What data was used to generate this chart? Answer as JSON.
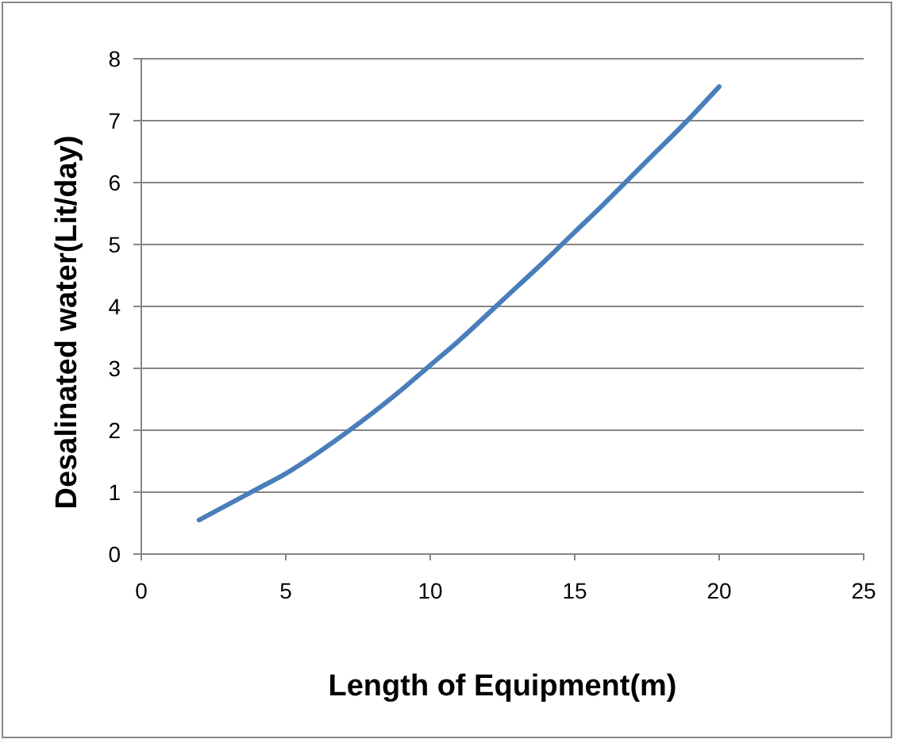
{
  "chart_data": {
    "type": "line",
    "xlabel": "Length of Equipment(m)",
    "ylabel": "Desalinated water(Lit/day)",
    "xlim": [
      0,
      25
    ],
    "xticks": [
      0,
      5,
      10,
      15,
      20,
      25
    ],
    "ylim": [
      0,
      8
    ],
    "yticks": [
      0,
      1,
      2,
      3,
      4,
      5,
      6,
      7,
      8
    ],
    "grid": "y",
    "marker": "none",
    "line_style": "solid",
    "x": [
      2,
      3,
      4,
      5,
      6,
      7.5,
      9,
      10,
      11,
      12.5,
      14,
      15,
      16,
      17.5,
      19,
      20
    ],
    "series": [
      {
        "color": "#4a7ebb",
        "values": [
          0.55,
          0.8,
          1.05,
          1.3,
          1.6,
          2.1,
          2.65,
          3.05,
          3.45,
          4.1,
          4.75,
          5.2,
          5.65,
          6.35,
          7.05,
          7.55
        ]
      }
    ]
  }
}
